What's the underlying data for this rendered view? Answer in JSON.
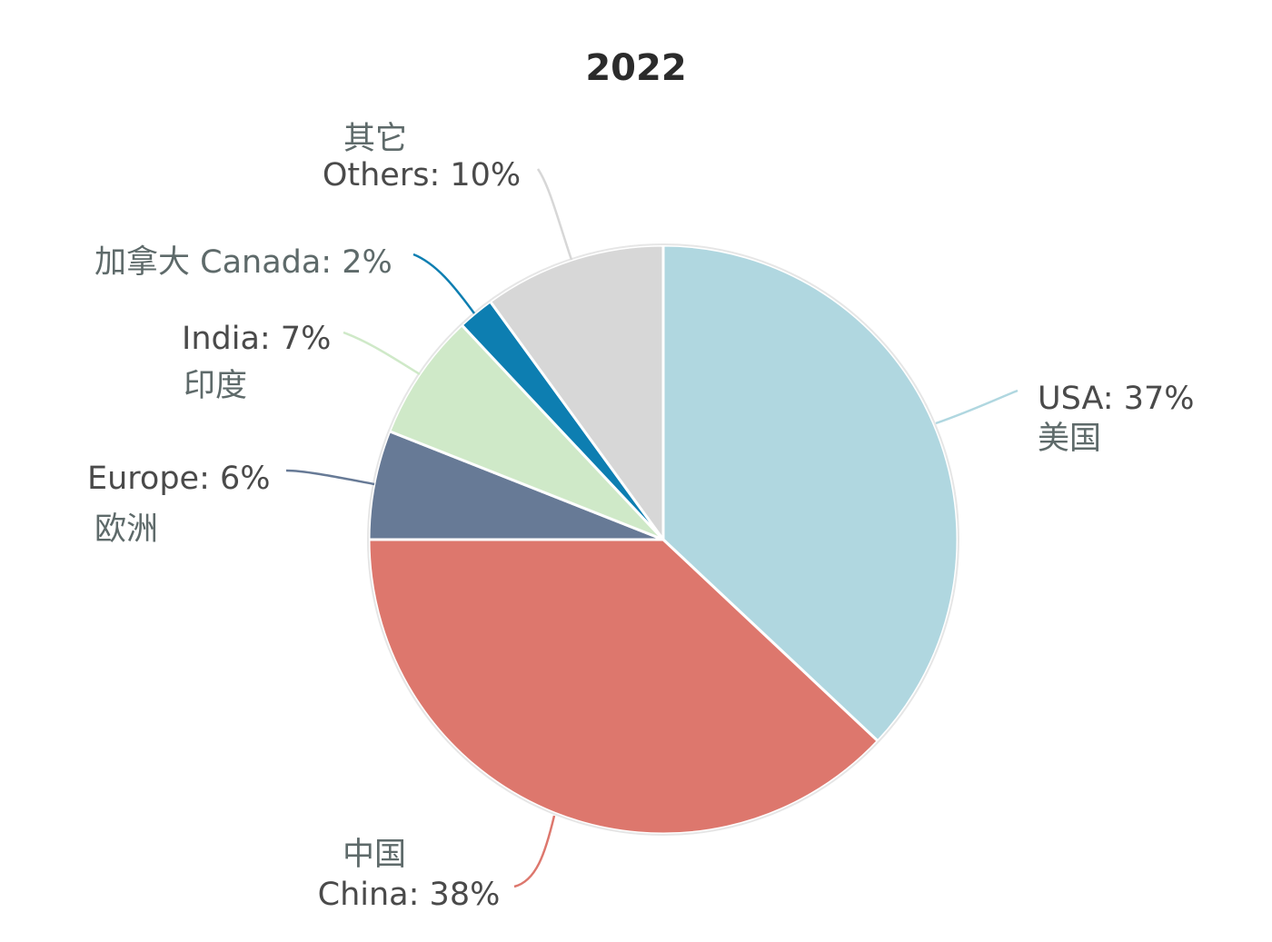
{
  "chart_data": {
    "type": "pie",
    "title": "2022",
    "start_angle_deg": 0,
    "direction": "clockwise",
    "slices": [
      {
        "key": "usa",
        "name": "USA",
        "name_zh": "美国",
        "value": 37,
        "label": "USA: 37%",
        "color": "#b0d7e0"
      },
      {
        "key": "china",
        "name": "China",
        "name_zh": "中国",
        "value": 38,
        "label": "China: 38%",
        "color": "#dd776d"
      },
      {
        "key": "europe",
        "name": "Europe",
        "name_zh": "欧洲",
        "value": 6,
        "label": "Europe: 6%",
        "color": "#677a96"
      },
      {
        "key": "india",
        "name": "India",
        "name_zh": "印度",
        "value": 7,
        "label": "India: 7%",
        "color": "#cfe9c8"
      },
      {
        "key": "canada",
        "name": "Canada",
        "name_zh": "加拿大",
        "value": 2,
        "label": "加拿大 Canada: 2%",
        "color": "#0d7eb1"
      },
      {
        "key": "others",
        "name": "Others",
        "name_zh": "其它",
        "value": 10,
        "label": "Others: 10%",
        "color": "#d7d7d7"
      }
    ]
  }
}
